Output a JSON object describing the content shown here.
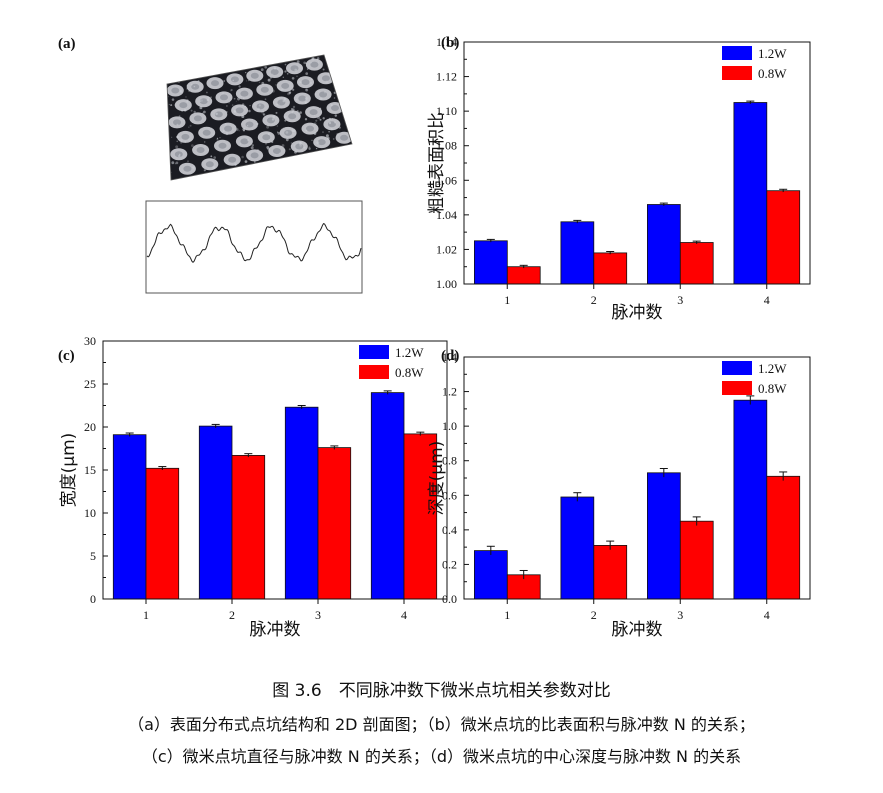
{
  "figure": {
    "caption_title": "图 3.6　不同脉冲数下微米点坑相关参数对比",
    "caption_line1": "（a）表面分布式点坑结构和 2D 剖面图；（b）微米点坑的比表面积与脉冲数 N 的关系；",
    "caption_line2": "（c）微米点坑直径与脉冲数 N 的关系；（d）微米点坑的中心深度与脉冲数 N 的关系",
    "panel_a_label": "(a)"
  },
  "colors": {
    "series1": "#0000ff",
    "series2": "#ff0000",
    "axis": "#111111"
  },
  "chart_data": [
    {
      "panel": "(b)",
      "type": "bar",
      "xlabel": "脉冲数",
      "ylabel": "粗糙表面积比",
      "categories": [
        "1",
        "2",
        "3",
        "4"
      ],
      "ylim": [
        1.0,
        1.14
      ],
      "yticks": [
        "1.00",
        "1.02",
        "1.04",
        "1.06",
        "1.08",
        "1.10",
        "1.12",
        "1.14"
      ],
      "series": [
        {
          "name": "1.2W",
          "values": [
            1.025,
            1.036,
            1.046,
            1.105
          ],
          "errors": [
            0.0008,
            0.0008,
            0.0008,
            0.0008
          ]
        },
        {
          "name": "0.8W",
          "values": [
            1.01,
            1.018,
            1.024,
            1.054
          ],
          "errors": [
            0.0008,
            0.0008,
            0.0008,
            0.0008
          ]
        }
      ],
      "legend": "top-right"
    },
    {
      "panel": "(c)",
      "type": "bar",
      "xlabel": "脉冲数",
      "ylabel": "宽度(μm)",
      "categories": [
        "1",
        "2",
        "3",
        "4"
      ],
      "ylim": [
        0,
        30
      ],
      "yticks": [
        "0",
        "5",
        "10",
        "15",
        "20",
        "25",
        "30"
      ],
      "series": [
        {
          "name": "1.2W",
          "values": [
            19.1,
            20.1,
            22.3,
            24.0
          ],
          "errors": [
            0.2,
            0.2,
            0.2,
            0.2
          ]
        },
        {
          "name": "0.8W",
          "values": [
            15.2,
            16.7,
            17.6,
            19.2
          ],
          "errors": [
            0.2,
            0.2,
            0.2,
            0.2
          ]
        }
      ],
      "legend": "top-right"
    },
    {
      "panel": "(d)",
      "type": "bar",
      "xlabel": "脉冲数",
      "ylabel": "深度(μm)",
      "categories": [
        "1",
        "2",
        "3",
        "4"
      ],
      "ylim": [
        0,
        1.4
      ],
      "yticks": [
        "0.0",
        "0.2",
        "0.4",
        "0.6",
        "0.8",
        "1.0",
        "1.2",
        "1.4"
      ],
      "series": [
        {
          "name": "1.2W",
          "values": [
            0.28,
            0.59,
            0.73,
            1.15
          ],
          "errors": [
            0.025,
            0.025,
            0.025,
            0.025
          ]
        },
        {
          "name": "0.8W",
          "values": [
            0.14,
            0.31,
            0.45,
            0.71
          ],
          "errors": [
            0.025,
            0.025,
            0.025,
            0.025
          ]
        }
      ],
      "legend": "top-right"
    }
  ]
}
